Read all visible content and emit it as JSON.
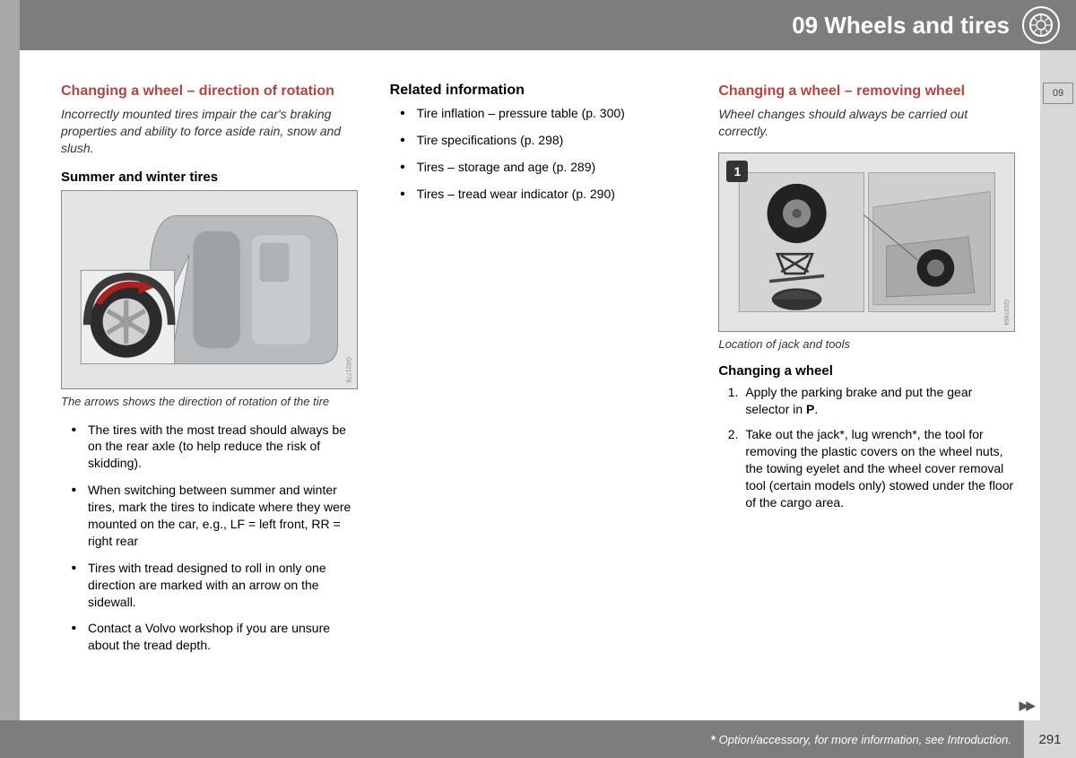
{
  "header": {
    "chapter_number": "09",
    "chapter_title": "Wheels and tires"
  },
  "side_tab": "09",
  "page_number": "291",
  "footer_note_star": "*",
  "footer_note_text": " Option/accessory, for more information, see Introduction.",
  "continue_arrows": "▶▶",
  "col1": {
    "heading": "Changing a wheel – direction of rotation",
    "intro": "Incorrectly mounted tires impair the car's braking properties and ability to force aside rain, snow and slush.",
    "subheading": "Summer and winter tires",
    "figure_caption": "The arrows shows the direction of rotation of the tire",
    "figure_code": "G021778",
    "bullets": [
      "The tires with the most tread should always be on the rear axle (to help reduce the risk of skidding).",
      "When switching between summer and winter tires, mark the tires to indicate where they were mounted on the car, e.g., LF = left front, RR = right rear",
      "Tires with tread designed to roll in only one direction are marked with an arrow on the sidewall.",
      "Contact a Volvo workshop if you are unsure about the tread depth."
    ]
  },
  "col2": {
    "heading": "Related information",
    "bullets": [
      "Tire inflation – pressure table (p. 300)",
      "Tire specifications (p. 298)",
      "Tires – storage and age (p. 289)",
      "Tires – tread wear indicator (p. 290)"
    ]
  },
  "col3": {
    "heading": "Changing a wheel – removing wheel",
    "intro": "Wheel changes should always be carried out correctly.",
    "figure_badge": "1",
    "figure_caption": "Location of jack and tools",
    "figure_code": "G037464",
    "subheading": "Changing a wheel",
    "steps_html": [
      "Apply the parking brake and put the gear selector in <b>P</b>.",
      "Take out the jack*, lug wrench*, the tool for removing the plastic covers on the wheel nuts, the towing eyelet and the wheel cover removal tool (certain models only) stowed under the floor of the cargo area."
    ]
  }
}
